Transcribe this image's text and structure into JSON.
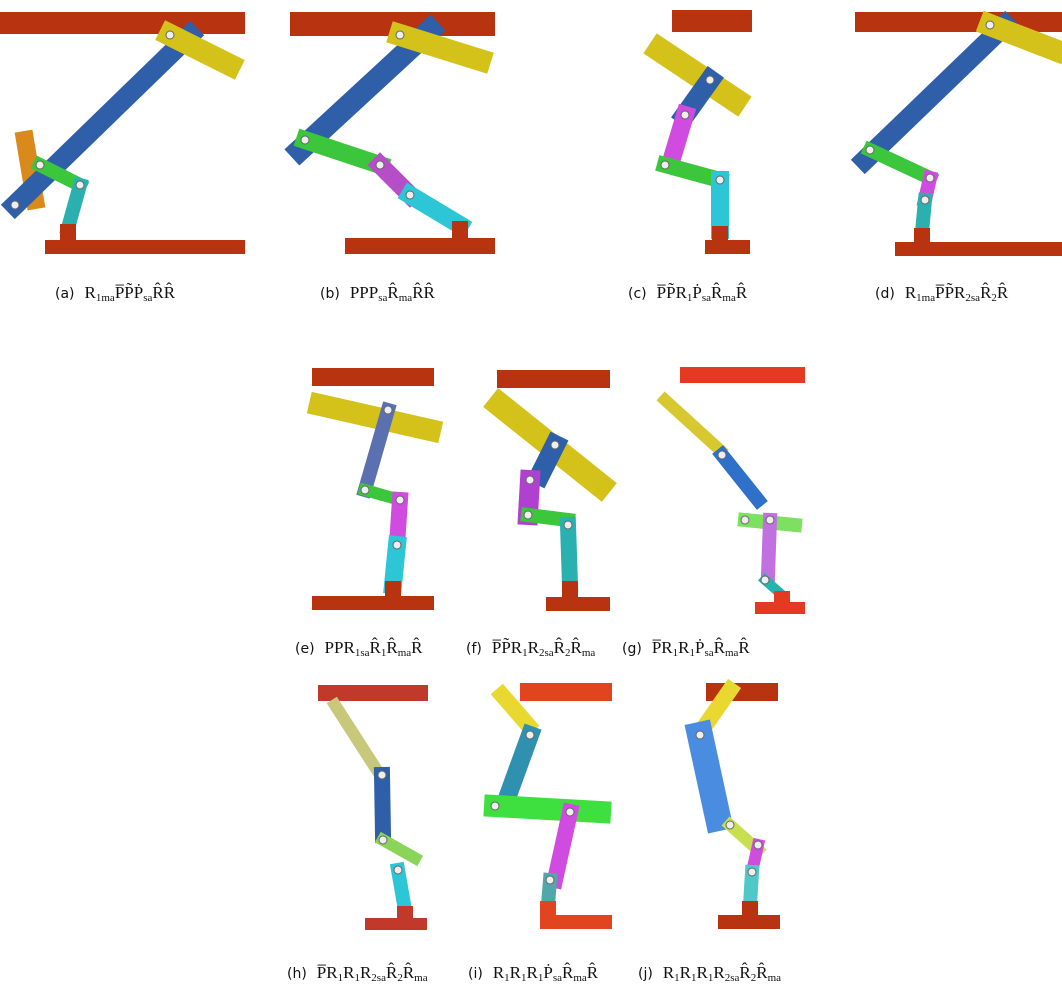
{
  "panels": [
    {
      "label": "(a)",
      "terms": [
        {
          "base": "R",
          "sub": "1ma"
        },
        {
          "base": "P̅"
        },
        {
          "base": "P̃"
        },
        {
          "base": "Ṗ",
          "sub": "sa"
        },
        {
          "base": "R̂"
        },
        {
          "base": "R̂"
        }
      ]
    },
    {
      "label": "(b)",
      "terms": [
        {
          "base": "P"
        },
        {
          "base": "P"
        },
        {
          "base": "P",
          "sub": "sa"
        },
        {
          "base": "R̂",
          "sub": "ma"
        },
        {
          "base": "R̂"
        },
        {
          "base": "R̂"
        }
      ]
    },
    {
      "label": "(c)",
      "terms": [
        {
          "base": "P̅"
        },
        {
          "base": "P̃"
        },
        {
          "base": "R",
          "sub": "1"
        },
        {
          "base": "Ṗ",
          "sub": "sa"
        },
        {
          "base": "R̂",
          "sub": "ma"
        },
        {
          "base": "R̂"
        }
      ]
    },
    {
      "label": "(d)",
      "terms": [
        {
          "base": "R",
          "sub": "1ma"
        },
        {
          "base": "P̅"
        },
        {
          "base": "P̃"
        },
        {
          "base": "R",
          "sub": "2sa"
        },
        {
          "base": "R̂",
          "sub": "2"
        },
        {
          "base": "R̂"
        }
      ]
    },
    {
      "label": "(e)",
      "terms": [
        {
          "base": "P"
        },
        {
          "base": "P"
        },
        {
          "base": "R",
          "sub": "1sa"
        },
        {
          "base": "R̂",
          "sub": "1"
        },
        {
          "base": "R̂",
          "sub": "ma"
        },
        {
          "base": "R̂"
        }
      ]
    },
    {
      "label": "(f)",
      "terms": [
        {
          "base": "P̅"
        },
        {
          "base": "P̃"
        },
        {
          "base": "R",
          "sub": "1"
        },
        {
          "base": "R",
          "sub": "2sa"
        },
        {
          "base": "R̂",
          "sub": "2"
        },
        {
          "base": "R̂",
          "sub": "ma"
        }
      ]
    },
    {
      "label": "(g)",
      "terms": [
        {
          "base": "P̅"
        },
        {
          "base": "R",
          "sub": "1"
        },
        {
          "base": "R",
          "sub": "1"
        },
        {
          "base": "Ṗ",
          "sub": "sa"
        },
        {
          "base": "R̂",
          "sub": "ma"
        },
        {
          "base": "R̂"
        }
      ]
    },
    {
      "label": "(h)",
      "terms": [
        {
          "base": "P̅"
        },
        {
          "base": "R",
          "sub": "1"
        },
        {
          "base": "R",
          "sub": "1"
        },
        {
          "base": "R",
          "sub": "2sa"
        },
        {
          "base": "R̂",
          "sub": "2"
        },
        {
          "base": "R̂",
          "sub": "ma"
        }
      ]
    },
    {
      "label": "(i)",
      "terms": [
        {
          "base": "R",
          "sub": "1"
        },
        {
          "base": "R",
          "sub": "1"
        },
        {
          "base": "R",
          "sub": "1"
        },
        {
          "base": "Ṗ",
          "sub": "sa"
        },
        {
          "base": "R̂",
          "sub": "ma"
        },
        {
          "base": "R̂"
        }
      ]
    },
    {
      "label": "(j)",
      "terms": [
        {
          "base": "R",
          "sub": "1"
        },
        {
          "base": "R",
          "sub": "1"
        },
        {
          "base": "R",
          "sub": "1"
        },
        {
          "base": "R",
          "sub": "2sa"
        },
        {
          "base": "R̂",
          "sub": "2"
        },
        {
          "base": "R̂",
          "sub": "ma"
        }
      ]
    }
  ]
}
